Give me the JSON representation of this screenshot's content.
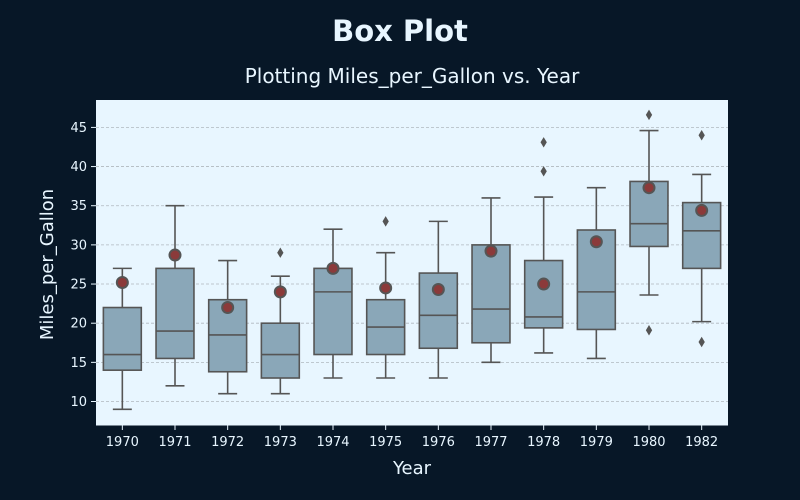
{
  "chart_data": {
    "type": "box",
    "title": "Box Plot",
    "subtitle": "Plotting Miles_per_Gallon vs. Year",
    "xlabel": "Year",
    "ylabel": "Miles_per_Gallon",
    "ylim": [
      7,
      48.5
    ],
    "yticks": [
      10,
      15,
      20,
      25,
      30,
      35,
      40,
      45
    ],
    "grid": true,
    "colors": {
      "background": "#071727",
      "plot_bg": "#e8f6ff",
      "box_fill": "#8aa7b8",
      "box_line": "#555555",
      "mean_fill": "#8b3a3a",
      "mean_edge": "#555555",
      "grid": "#b0b8bf"
    },
    "categories": [
      "1970",
      "1971",
      "1972",
      "1973",
      "1974",
      "1975",
      "1976",
      "1977",
      "1978",
      "1979",
      "1980",
      "1982"
    ],
    "boxes": [
      {
        "year": "1970",
        "whisker_low": 9,
        "q1": 14,
        "median": 16,
        "q3": 22,
        "whisker_high": 27,
        "mean": 25.2,
        "outliers": []
      },
      {
        "year": "1971",
        "whisker_low": 12,
        "q1": 15.5,
        "median": 19,
        "q3": 27,
        "whisker_high": 35,
        "mean": 28.7,
        "outliers": []
      },
      {
        "year": "1972",
        "whisker_low": 11,
        "q1": 13.8,
        "median": 18.5,
        "q3": 23,
        "whisker_high": 28,
        "mean": 22,
        "outliers": []
      },
      {
        "year": "1973",
        "whisker_low": 11,
        "q1": 13,
        "median": 16,
        "q3": 20,
        "whisker_high": 26,
        "mean": 24,
        "outliers": [
          29
        ]
      },
      {
        "year": "1974",
        "whisker_low": 13,
        "q1": 16,
        "median": 24,
        "q3": 27,
        "whisker_high": 32,
        "mean": 27,
        "outliers": []
      },
      {
        "year": "1975",
        "whisker_low": 13,
        "q1": 16,
        "median": 19.5,
        "q3": 23,
        "whisker_high": 29,
        "mean": 24.5,
        "outliers": [
          33
        ]
      },
      {
        "year": "1976",
        "whisker_low": 13,
        "q1": 16.8,
        "median": 21,
        "q3": 26.4,
        "whisker_high": 33,
        "mean": 24.3,
        "outliers": []
      },
      {
        "year": "1977",
        "whisker_low": 15,
        "q1": 17.5,
        "median": 21.8,
        "q3": 30,
        "whisker_high": 36,
        "mean": 29.2,
        "outliers": []
      },
      {
        "year": "1978",
        "whisker_low": 16.2,
        "q1": 19.4,
        "median": 20.8,
        "q3": 28,
        "whisker_high": 36.1,
        "mean": 25,
        "outliers": [
          39.4,
          43.1
        ]
      },
      {
        "year": "1979",
        "whisker_low": 15.5,
        "q1": 19.2,
        "median": 24,
        "q3": 31.9,
        "whisker_high": 37.3,
        "mean": 30.4,
        "outliers": []
      },
      {
        "year": "1980",
        "whisker_low": 23.6,
        "q1": 29.8,
        "median": 32.7,
        "q3": 38.1,
        "whisker_high": 44.6,
        "mean": 37.3,
        "outliers": [
          19.1,
          46.6
        ]
      },
      {
        "year": "1982",
        "whisker_low": 20.2,
        "q1": 27,
        "median": 31.8,
        "q3": 35.4,
        "whisker_high": 39,
        "mean": 34.4,
        "outliers": [
          17.6,
          44
        ]
      }
    ]
  }
}
